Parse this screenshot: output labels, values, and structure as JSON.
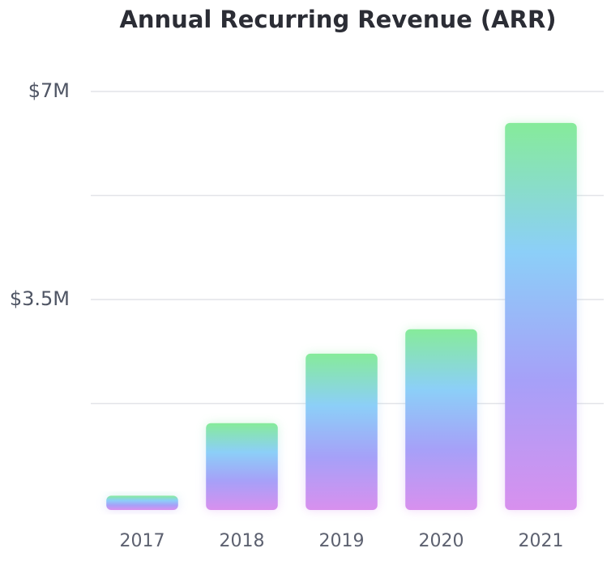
{
  "chart_data": {
    "type": "bar",
    "title": "Annual Recurring Revenue (ARR)",
    "categories": [
      "2017",
      "2018",
      "2019",
      "2020",
      "2021"
    ],
    "values": [
      200000,
      1420000,
      2590000,
      3000000,
      6470000
    ],
    "gradient": [
      "#86eb9a",
      "#8ccff8",
      "#a6a0f8",
      "#d890ee"
    ],
    "ylim": [
      0,
      7000000
    ],
    "yticks": [
      {
        "value": 3500000,
        "label": "$3.5M"
      },
      {
        "value": 7000000,
        "label": "$7M"
      }
    ],
    "minor_yticks": [
      1750000,
      5250000
    ],
    "grid": true
  }
}
